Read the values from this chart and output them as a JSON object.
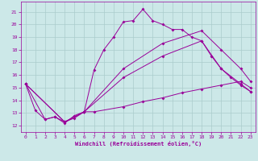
{
  "xlabel": "Windchill (Refroidissement éolien,°C)",
  "bg_color": "#cce8e8",
  "grid_color": "#aacccc",
  "line_color": "#990099",
  "xlim": [
    -0.5,
    23.5
  ],
  "ylim": [
    11.5,
    21.8
  ],
  "xticks": [
    0,
    1,
    2,
    3,
    4,
    5,
    6,
    7,
    8,
    9,
    10,
    11,
    12,
    13,
    14,
    15,
    16,
    17,
    18,
    19,
    20,
    21,
    22,
    23
  ],
  "yticks": [
    12,
    13,
    14,
    15,
    16,
    17,
    18,
    19,
    20,
    21
  ],
  "line1_x": [
    0,
    1,
    2,
    3,
    4,
    5,
    6,
    7,
    8,
    9,
    10,
    11,
    12,
    13,
    14,
    15,
    16,
    17,
    18,
    19,
    20,
    21,
    22,
    23
  ],
  "line1_y": [
    15.3,
    13.2,
    12.5,
    12.7,
    12.3,
    12.6,
    13.1,
    16.4,
    18.0,
    19.0,
    20.2,
    20.3,
    21.2,
    20.3,
    20.0,
    19.6,
    19.6,
    19.0,
    18.7,
    17.5,
    16.5,
    15.8,
    15.2,
    14.7
  ],
  "line2_x": [
    0,
    2,
    3,
    4,
    5,
    6,
    7,
    10,
    12,
    14,
    16,
    18,
    20,
    22,
    23
  ],
  "line2_y": [
    15.3,
    12.5,
    12.7,
    12.2,
    12.8,
    13.1,
    13.1,
    13.5,
    13.9,
    14.2,
    14.6,
    14.9,
    15.2,
    15.5,
    15.0
  ],
  "line3_x": [
    0,
    4,
    6,
    10,
    14,
    18,
    20,
    22,
    23
  ],
  "line3_y": [
    15.3,
    12.3,
    13.1,
    15.8,
    17.5,
    18.7,
    16.5,
    15.3,
    14.7
  ],
  "line4_x": [
    0,
    4,
    6,
    10,
    14,
    18,
    20,
    22,
    23
  ],
  "line4_y": [
    15.3,
    12.3,
    13.1,
    16.5,
    18.5,
    19.5,
    18.0,
    16.5,
    15.5
  ]
}
